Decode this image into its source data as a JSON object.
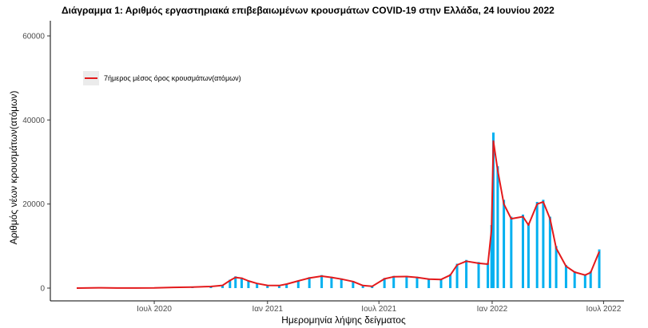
{
  "chart_data": {
    "type": "bar",
    "title": "Διάγραμμα 1: Αριθμός εργαστηριακά επιβεβαιωμένων κρουσμάτων COVID-19 στην Ελλάδα, 24 Ιουνίου 2022",
    "xlabel": "Ημερομηνία λήψης δείγματος",
    "ylabel": "Αριθμός νέων κρουσμάτων(ατόμων)",
    "x_range": [
      "2020-02-26",
      "2022-06-24"
    ],
    "ylim": [
      0,
      65000
    ],
    "x_ticks": [
      {
        "date": "2020-07-01",
        "label": "Ιουλ 2020"
      },
      {
        "date": "2021-01-01",
        "label": "Ιαν 2021"
      },
      {
        "date": "2021-07-01",
        "label": "Ιουλ 2021"
      },
      {
        "date": "2022-01-01",
        "label": "Ιαν 2022"
      },
      {
        "date": "2022-07-01",
        "label": "Ιουλ 2022"
      }
    ],
    "y_ticks": [
      0,
      20000,
      40000,
      60000
    ],
    "grid": false,
    "legend_position": "top-left",
    "series": [
      {
        "name": "",
        "kind": "daily-bars",
        "color": "#00b0f0",
        "points": [
          [
            "2020-02-26",
            0
          ],
          [
            "2020-04-01",
            80
          ],
          [
            "2020-05-01",
            20
          ],
          [
            "2020-06-01",
            15
          ],
          [
            "2020-07-01",
            30
          ],
          [
            "2020-08-01",
            200
          ],
          [
            "2020-09-01",
            300
          ],
          [
            "2020-10-01",
            400
          ],
          [
            "2020-10-20",
            700
          ],
          [
            "2020-11-01",
            2000
          ],
          [
            "2020-11-10",
            2800
          ],
          [
            "2020-11-20",
            2500
          ],
          [
            "2020-12-01",
            1800
          ],
          [
            "2020-12-15",
            1200
          ],
          [
            "2021-01-01",
            700
          ],
          [
            "2021-01-20",
            650
          ],
          [
            "2021-02-01",
            1000
          ],
          [
            "2021-02-20",
            1800
          ],
          [
            "2021-03-10",
            2600
          ],
          [
            "2021-03-30",
            3100
          ],
          [
            "2021-04-15",
            2700
          ],
          [
            "2021-05-01",
            2300
          ],
          [
            "2021-05-20",
            1700
          ],
          [
            "2021-06-05",
            700
          ],
          [
            "2021-06-20",
            450
          ],
          [
            "2021-07-10",
            2400
          ],
          [
            "2021-07-25",
            2900
          ],
          [
            "2021-08-15",
            2900
          ],
          [
            "2021-09-01",
            2700
          ],
          [
            "2021-09-20",
            2300
          ],
          [
            "2021-10-10",
            2200
          ],
          [
            "2021-10-25",
            3300
          ],
          [
            "2021-11-05",
            5800
          ],
          [
            "2021-11-20",
            6700
          ],
          [
            "2021-12-10",
            6200
          ],
          [
            "2021-12-25",
            6000
          ],
          [
            "2021-12-31",
            15000
          ],
          [
            "2022-01-03",
            37000
          ],
          [
            "2022-01-10",
            29000
          ],
          [
            "2022-01-20",
            21000
          ],
          [
            "2022-02-01",
            17000
          ],
          [
            "2022-02-20",
            17500
          ],
          [
            "2022-03-01",
            15500
          ],
          [
            "2022-03-15",
            20500
          ],
          [
            "2022-03-25",
            21000
          ],
          [
            "2022-04-05",
            17000
          ],
          [
            "2022-04-15",
            10000
          ],
          [
            "2022-05-01",
            5500
          ],
          [
            "2022-05-15",
            4000
          ],
          [
            "2022-06-01",
            3300
          ],
          [
            "2022-06-10",
            4000
          ],
          [
            "2022-06-24",
            9200
          ]
        ]
      },
      {
        "name": "7ήμερος μέσος όρος κρουσμάτων(ατόμων)",
        "kind": "7-day-average",
        "color": "#e31a1c",
        "points": [
          [
            "2020-02-26",
            0
          ],
          [
            "2020-04-01",
            70
          ],
          [
            "2020-05-01",
            20
          ],
          [
            "2020-06-01",
            15
          ],
          [
            "2020-07-01",
            30
          ],
          [
            "2020-08-01",
            180
          ],
          [
            "2020-09-01",
            250
          ],
          [
            "2020-10-01",
            380
          ],
          [
            "2020-10-20",
            650
          ],
          [
            "2020-11-01",
            1800
          ],
          [
            "2020-11-10",
            2550
          ],
          [
            "2020-11-20",
            2350
          ],
          [
            "2020-12-01",
            1700
          ],
          [
            "2020-12-15",
            1100
          ],
          [
            "2021-01-01",
            650
          ],
          [
            "2021-01-20",
            600
          ],
          [
            "2021-02-01",
            950
          ],
          [
            "2021-02-20",
            1700
          ],
          [
            "2021-03-10",
            2400
          ],
          [
            "2021-03-30",
            2850
          ],
          [
            "2021-04-15",
            2550
          ],
          [
            "2021-05-01",
            2150
          ],
          [
            "2021-05-20",
            1550
          ],
          [
            "2021-06-05",
            600
          ],
          [
            "2021-06-20",
            420
          ],
          [
            "2021-07-10",
            2200
          ],
          [
            "2021-07-25",
            2700
          ],
          [
            "2021-08-15",
            2750
          ],
          [
            "2021-09-01",
            2550
          ],
          [
            "2021-09-20",
            2150
          ],
          [
            "2021-10-10",
            2050
          ],
          [
            "2021-10-25",
            3100
          ],
          [
            "2021-11-05",
            5500
          ],
          [
            "2021-11-20",
            6400
          ],
          [
            "2021-12-10",
            5900
          ],
          [
            "2021-12-25",
            5700
          ],
          [
            "2021-12-31",
            14000
          ],
          [
            "2022-01-03",
            35000
          ],
          [
            "2022-01-10",
            28000
          ],
          [
            "2022-01-20",
            20000
          ],
          [
            "2022-02-01",
            16500
          ],
          [
            "2022-02-20",
            17000
          ],
          [
            "2022-03-01",
            15000
          ],
          [
            "2022-03-15",
            20000
          ],
          [
            "2022-03-25",
            20500
          ],
          [
            "2022-04-05",
            16500
          ],
          [
            "2022-04-15",
            9500
          ],
          [
            "2022-05-01",
            5200
          ],
          [
            "2022-05-15",
            3800
          ],
          [
            "2022-06-01",
            3100
          ],
          [
            "2022-06-10",
            3700
          ],
          [
            "2022-06-24",
            8700
          ]
        ]
      }
    ]
  }
}
